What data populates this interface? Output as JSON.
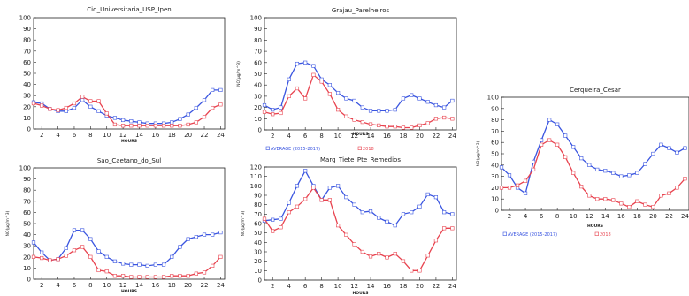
{
  "colors": {
    "average": "#3a55e0",
    "y2018": "#e8434f",
    "axis": "#222222"
  },
  "chart_data": [
    {
      "type": "line",
      "title": "Cid_Universitaria_USP_Ipen",
      "xlabel": "HOURS",
      "ylabel": "",
      "ylim": [
        0,
        100
      ],
      "yticks": [
        0,
        10,
        20,
        30,
        40,
        50,
        60,
        70,
        80,
        90,
        100
      ],
      "xticks": [
        2,
        4,
        6,
        8,
        10,
        12,
        14,
        16,
        18,
        20,
        22,
        24
      ],
      "x": [
        1,
        2,
        3,
        4,
        5,
        6,
        7,
        8,
        9,
        10,
        11,
        12,
        13,
        14,
        15,
        16,
        17,
        18,
        19,
        20,
        21,
        22,
        23,
        24
      ],
      "series": [
        {
          "name": "AVERAGE (2015-2017)",
          "values": [
            24,
            23,
            18,
            16,
            16,
            19,
            26,
            20,
            16,
            12,
            10,
            8,
            7,
            6,
            5,
            5,
            5,
            6,
            9,
            13,
            19,
            26,
            35,
            35
          ]
        },
        {
          "name": "2018",
          "values": [
            23,
            21,
            18,
            17,
            19,
            23,
            29,
            25,
            25,
            14,
            4,
            3,
            3,
            3,
            3,
            3,
            3,
            3,
            3,
            4,
            6,
            11,
            19,
            22
          ]
        }
      ],
      "legend": []
    },
    {
      "type": "line",
      "title": "Grajau_Parelheiros",
      "xlabel": "HOURS",
      "ylabel": "NO(µg/m^3)",
      "ylim": [
        0,
        100
      ],
      "yticks": [
        0,
        10,
        20,
        30,
        40,
        50,
        60,
        70,
        80,
        90,
        100
      ],
      "xticks": [
        2,
        4,
        6,
        8,
        10,
        12,
        14,
        16,
        18,
        20,
        22,
        24
      ],
      "x": [
        1,
        2,
        3,
        4,
        5,
        6,
        7,
        8,
        9,
        10,
        11,
        12,
        13,
        14,
        15,
        16,
        17,
        18,
        19,
        20,
        21,
        22,
        23,
        24
      ],
      "series": [
        {
          "name": "AVERAGE (2015-2017)",
          "values": [
            22,
            18,
            20,
            45,
            59,
            60,
            57,
            45,
            40,
            33,
            28,
            26,
            20,
            17,
            17,
            17,
            18,
            28,
            31,
            28,
            25,
            22,
            20,
            26
          ]
        },
        {
          "name": "2018",
          "values": [
            16,
            14,
            15,
            30,
            37,
            28,
            49,
            43,
            32,
            18,
            12,
            9,
            7,
            5,
            4,
            3,
            3,
            2,
            2,
            4,
            6,
            10,
            11,
            10
          ]
        }
      ],
      "legend": [
        "AVERAGE (2015-2017)",
        "2018"
      ]
    },
    {
      "type": "line",
      "title": "Cerqueira_Cesar",
      "xlabel": "HOURS",
      "ylabel": "NO(µg/m^3)",
      "ylim": [
        0,
        100
      ],
      "yticks": [
        0,
        10,
        20,
        30,
        40,
        50,
        60,
        70,
        80,
        90,
        100
      ],
      "xticks": [
        2,
        4,
        6,
        8,
        10,
        12,
        14,
        16,
        18,
        20,
        22,
        24
      ],
      "x": [
        1,
        2,
        3,
        4,
        5,
        6,
        7,
        8,
        9,
        10,
        11,
        12,
        13,
        14,
        15,
        16,
        17,
        18,
        19,
        20,
        21,
        22,
        23,
        24
      ],
      "series": [
        {
          "name": "AVERAGE (2015-2017)",
          "values": [
            38,
            31,
            20,
            15,
            43,
            62,
            80,
            76,
            66,
            56,
            46,
            40,
            36,
            35,
            33,
            30,
            31,
            33,
            41,
            50,
            58,
            55,
            51,
            55
          ]
        },
        {
          "name": "2018",
          "values": [
            20,
            20,
            22,
            26,
            36,
            58,
            62,
            58,
            47,
            33,
            21,
            13,
            10,
            10,
            9,
            6,
            3,
            8,
            5,
            3,
            13,
            15,
            20,
            28
          ]
        }
      ],
      "legend": [
        "AVERAGE (2015-2017)",
        "2018"
      ]
    },
    {
      "type": "line",
      "title": "Sao_Caetano_do_Sul",
      "xlabel": "HOURS",
      "ylabel": "NO(µg/m^3)",
      "ylim": [
        0,
        100
      ],
      "yticks": [
        0,
        10,
        20,
        30,
        40,
        50,
        60,
        70,
        80,
        90,
        100
      ],
      "xticks": [
        2,
        4,
        6,
        8,
        10,
        12,
        14,
        16,
        18,
        20,
        22,
        24
      ],
      "x": [
        1,
        2,
        3,
        4,
        5,
        6,
        7,
        8,
        9,
        10,
        11,
        12,
        13,
        14,
        15,
        16,
        17,
        18,
        19,
        20,
        21,
        22,
        23,
        24
      ],
      "series": [
        {
          "name": "AVERAGE (2015-2017)",
          "values": [
            33,
            24,
            17,
            18,
            28,
            44,
            44,
            36,
            25,
            20,
            16,
            14,
            13,
            13,
            12,
            13,
            13,
            20,
            29,
            36,
            38,
            40,
            40,
            42
          ]
        },
        {
          "name": "2018",
          "values": [
            20,
            19,
            17,
            18,
            21,
            26,
            29,
            20,
            8,
            7,
            3,
            3,
            2,
            2,
            2,
            2,
            2,
            3,
            3,
            3,
            5,
            6,
            12,
            20
          ]
        }
      ],
      "legend": []
    },
    {
      "type": "line",
      "title": "Marg_Tiete_Pte_Remedios",
      "xlabel": "HOURS",
      "ylabel": "NO(µg/m^3)",
      "ylim": [
        0,
        120
      ],
      "yticks": [
        0,
        10,
        20,
        30,
        40,
        50,
        60,
        70,
        80,
        90,
        100,
        110,
        120
      ],
      "xticks": [
        2,
        4,
        6,
        8,
        10,
        12,
        14,
        16,
        18,
        20,
        22,
        24
      ],
      "x": [
        1,
        2,
        3,
        4,
        5,
        6,
        7,
        8,
        9,
        10,
        11,
        12,
        13,
        14,
        15,
        16,
        17,
        18,
        19,
        20,
        21,
        22,
        23,
        24
      ],
      "series": [
        {
          "name": "AVERAGE (2015-2017)",
          "values": [
            63,
            64,
            65,
            82,
            100,
            116,
            100,
            85,
            98,
            100,
            88,
            80,
            72,
            73,
            66,
            62,
            58,
            70,
            72,
            78,
            91,
            88,
            72,
            70
          ]
        },
        {
          "name": "2018",
          "values": [
            65,
            52,
            56,
            72,
            78,
            86,
            98,
            85,
            85,
            58,
            48,
            38,
            30,
            25,
            28,
            24,
            28,
            20,
            10,
            10,
            26,
            42,
            55,
            55
          ]
        }
      ],
      "legend": []
    }
  ]
}
